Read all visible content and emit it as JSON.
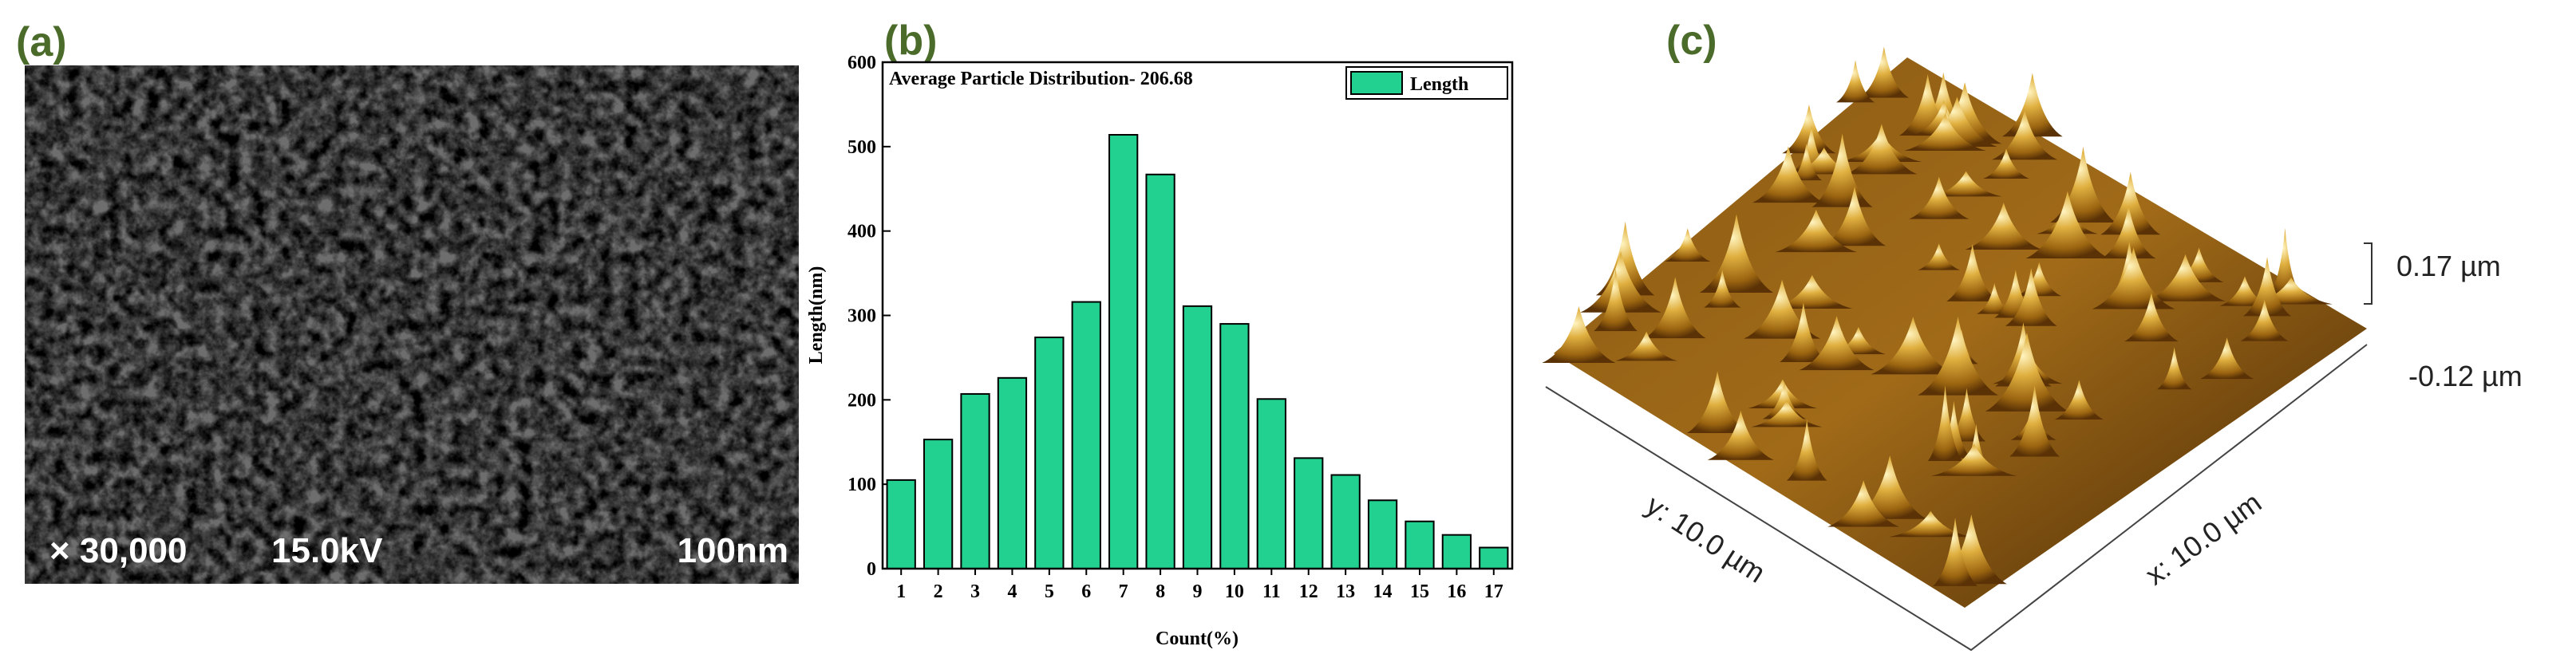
{
  "panels": {
    "a": {
      "label": "(a)",
      "magnification": "× 30,000",
      "voltage": "15.0kV",
      "scale_bar": "100nm"
    },
    "b": {
      "label": "(b)"
    },
    "c": {
      "label": "(c)",
      "z_max": "0.17 µm",
      "z_min": "-0.12 µm",
      "y_size": "y: 10.0 µm",
      "x_size": "x: 10.0 µm"
    }
  },
  "chart_data": {
    "type": "bar",
    "title": "Average Particle Distribution- 206.68",
    "x_label": "Count(%)",
    "y_label": "Length(nm)",
    "categories": [
      "1",
      "2",
      "3",
      "4",
      "5",
      "6",
      "7",
      "8",
      "9",
      "10",
      "11",
      "12",
      "13",
      "14",
      "15",
      "16",
      "17"
    ],
    "series": [
      {
        "name": "Length",
        "color": "#22d18f",
        "values": [
          105,
          153,
          207,
          226,
          274,
          316,
          514,
          467,
          311,
          290,
          201,
          131,
          111,
          81,
          56,
          40,
          25
        ]
      }
    ],
    "ylim": [
      0,
      600
    ],
    "yticks": [
      0,
      100,
      200,
      300,
      400,
      500,
      600
    ],
    "legend": "top-right"
  }
}
